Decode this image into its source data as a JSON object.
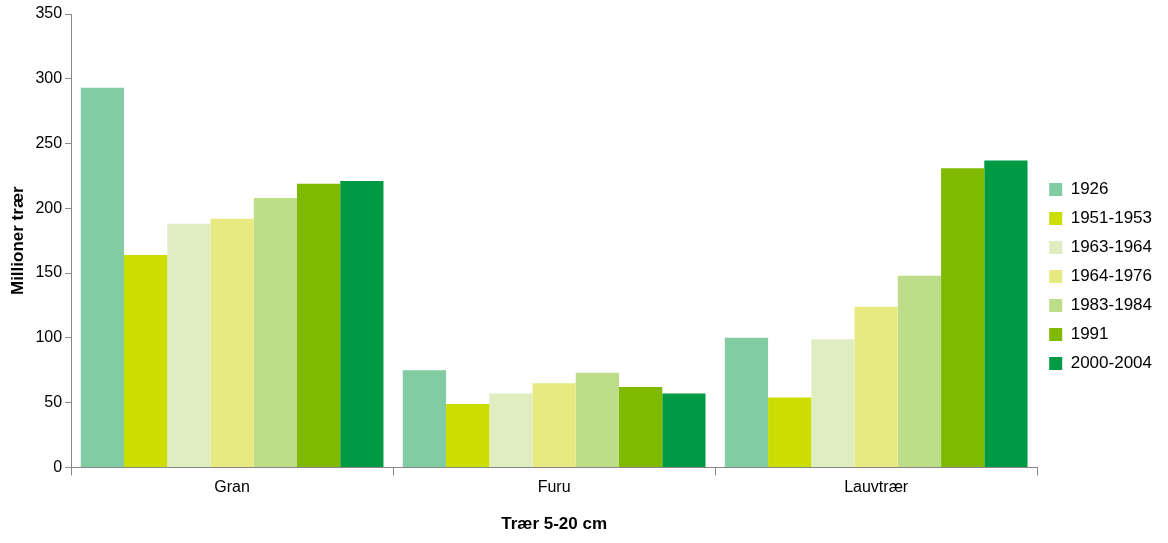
{
  "chart_data": {
    "type": "bar",
    "xlabel": "Trær 5-20 cm",
    "ylabel": "Millioner trær",
    "categories": [
      "Gran",
      "Furu",
      "Lauvtrær"
    ],
    "series": [
      {
        "name": "1926",
        "color": "#82cca4",
        "values": [
          293,
          75,
          100
        ]
      },
      {
        "name": "1951-1953",
        "color": "#ccdd00",
        "values": [
          164,
          49,
          54
        ]
      },
      {
        "name": "1963-1964",
        "color": "#e0edc0",
        "values": [
          188,
          57,
          99
        ]
      },
      {
        "name": "1964-1976",
        "color": "#e6ea80",
        "values": [
          192,
          65,
          124
        ]
      },
      {
        "name": "1983-1984",
        "color": "#bedd88",
        "values": [
          208,
          73,
          148
        ]
      },
      {
        "name": "1991",
        "color": "#7fba00",
        "values": [
          219,
          62,
          231
        ]
      },
      {
        "name": "2000-2004",
        "color": "#009a44",
        "values": [
          221,
          57,
          237
        ]
      }
    ],
    "ylim": [
      0,
      350
    ],
    "yticks": [
      0,
      50,
      100,
      150,
      200,
      250,
      300,
      350
    ],
    "grid": false,
    "legend": "right"
  }
}
